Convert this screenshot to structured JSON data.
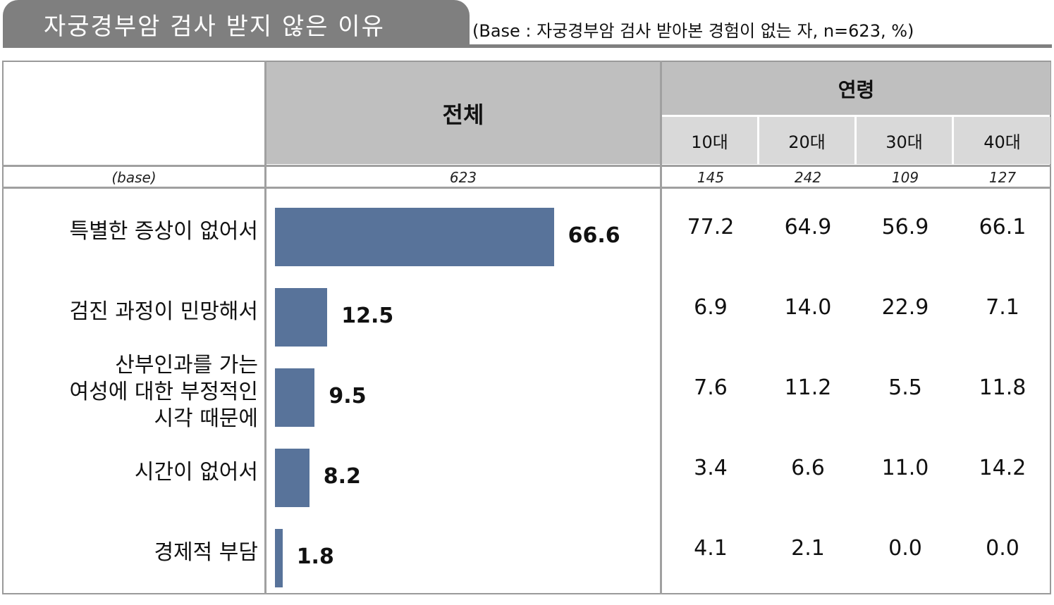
{
  "title": "자궁경부암 검사 받지 않은 이유",
  "base_note": "(Base : 자궁경부암 검사 받아본 경험이 없는 자, n=623, %)",
  "header": {
    "total": "전체",
    "age_group": "연령",
    "age_columns": [
      "10대",
      "20대",
      "30대",
      "40대"
    ]
  },
  "base_row": {
    "label": "(base)",
    "total": "623",
    "ages": [
      "145",
      "242",
      "109",
      "127"
    ]
  },
  "colors": {
    "bar": "#58739a",
    "header_dark": "#bfbfbf",
    "header_light": "#d9d9d9"
  },
  "chart_data": {
    "type": "bar",
    "orientation": "horizontal",
    "categories": [
      "특별한 증상이 없어서",
      "검진 과정이 민망해서",
      "산부인과를 가는 여성에 대한 부정적인 시각 때문에",
      "시간이 없어서",
      "경제적 부담"
    ],
    "category_lines": [
      [
        "특별한 증상이 없어서"
      ],
      [
        "검진 과정이 민망해서"
      ],
      [
        "산부인과를 가는",
        "여성에 대한 부정적인",
        "시각 때문에"
      ],
      [
        "시간이 없어서"
      ],
      [
        "경제적 부담"
      ]
    ],
    "values": [
      "66.6",
      "12.5",
      "9.5",
      "8.2",
      "1.8"
    ],
    "xlim": [
      0,
      100
    ],
    "age_table": [
      [
        "77.2",
        "64.9",
        "56.9",
        "66.1"
      ],
      [
        "6.9",
        "14.0",
        "22.9",
        "7.1"
      ],
      [
        "7.6",
        "11.2",
        "5.5",
        "11.8"
      ],
      [
        "3.4",
        "6.6",
        "11.0",
        "14.2"
      ],
      [
        "4.1",
        "2.1",
        "0.0",
        "0.0"
      ]
    ]
  }
}
